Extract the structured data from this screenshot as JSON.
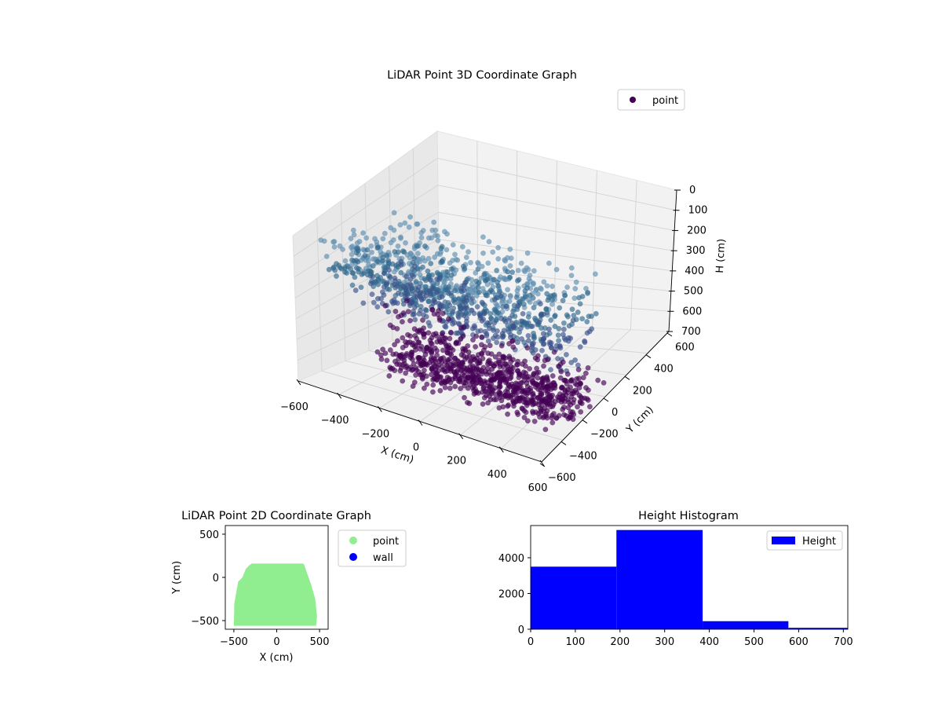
{
  "colors": {
    "point_3d_top": "#440154",
    "point_3d_mid": "#3b528b",
    "point_3d_low": "#31688e",
    "point_3d_light": "#5f8fb0",
    "point_2d": "#90ee90",
    "wall_2d": "#0000ff",
    "histogram": "#0000ff",
    "pane": "#f2f2f2",
    "grid": "#d3d3d3"
  },
  "chart_data": [
    {
      "type": "scatter",
      "projection": "3d",
      "title": "LiDAR Point 3D Coordinate Graph",
      "xlabel": "X (cm)",
      "ylabel": "Y (cm)",
      "zlabel": "H (cm)",
      "xlim": [
        -600,
        600
      ],
      "ylim": [
        -600,
        600
      ],
      "zlim": [
        700,
        0
      ],
      "x_ticks": [
        "−600",
        "−400",
        "−200",
        "0",
        "200",
        "400",
        "600"
      ],
      "y_ticks": [
        "−600",
        "−400",
        "−200",
        "0",
        "200",
        "400",
        "600"
      ],
      "z_ticks": [
        "0",
        "100",
        "200",
        "300",
        "400",
        "500",
        "600",
        "700"
      ],
      "legend": [
        "point"
      ],
      "legend_position": "top-right",
      "grid": true,
      "series": [
        {
          "name": "point",
          "description": "dense cloud (~10,000 points) of a room roughly x −500…500 cm, y −550…150 cm, height 0…700 cm",
          "approx_extent": {
            "x": [
              -500,
              500
            ],
            "y": [
              -550,
              150
            ],
            "h": [
              0,
              700
            ]
          }
        }
      ]
    },
    {
      "type": "scatter",
      "title": "LiDAR Point 2D Coordinate Graph",
      "xlabel": "X (cm)",
      "ylabel": "Y (cm)",
      "xlim": [
        -600,
        600
      ],
      "ylim": [
        -600,
        600
      ],
      "x_ticks": [
        "−500",
        "0",
        "500"
      ],
      "y_ticks": [
        "500",
        "0",
        "−500"
      ],
      "legend": [
        "point",
        "wall"
      ],
      "legend_position": "outside-right",
      "series": [
        {
          "name": "point",
          "shape": "filled region",
          "outline": [
            [
              -500,
              -560
            ],
            [
              -495,
              -300
            ],
            [
              -450,
              -50
            ],
            [
              -400,
              0
            ],
            [
              -360,
              100
            ],
            [
              -320,
              140
            ],
            [
              -290,
              160
            ],
            [
              300,
              160
            ],
            [
              320,
              150
            ],
            [
              350,
              60
            ],
            [
              400,
              -80
            ],
            [
              450,
              -250
            ],
            [
              470,
              -450
            ],
            [
              460,
              -560
            ]
          ]
        },
        {
          "name": "wall",
          "points": []
        }
      ]
    },
    {
      "type": "bar",
      "subtype": "histogram",
      "title": "Height Histogram",
      "xlabel": "",
      "ylabel": "",
      "xlim": [
        0,
        710
      ],
      "ylim": [
        0,
        5800
      ],
      "x_ticks": [
        "0",
        "100",
        "200",
        "300",
        "400",
        "500",
        "600",
        "700"
      ],
      "y_ticks": [
        "0",
        "2000",
        "4000"
      ],
      "legend": [
        "Height"
      ],
      "legend_position": "top-right",
      "bins": [
        {
          "from": 0,
          "to": 192,
          "count": 3500
        },
        {
          "from": 192,
          "to": 385,
          "count": 5550
        },
        {
          "from": 385,
          "to": 577,
          "count": 450
        },
        {
          "from": 577,
          "to": 710,
          "count": 80
        }
      ]
    }
  ]
}
